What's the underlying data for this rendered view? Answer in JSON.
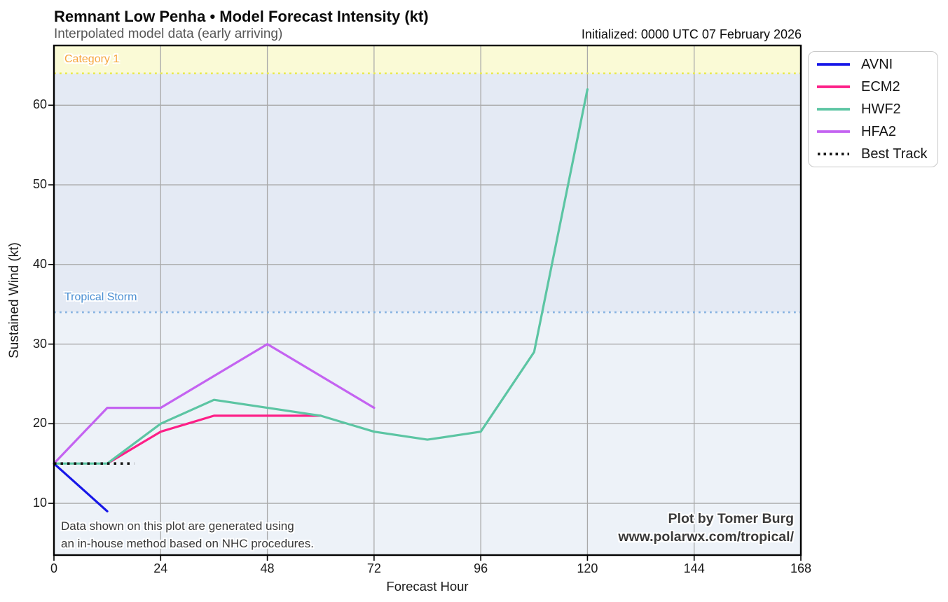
{
  "header": {
    "title": "Remnant Low Penha • Model Forecast Intensity (kt)",
    "subtitle": "Interpolated model data (early arriving)",
    "initialized": "Initialized: 0000 UTC 07 February 2026"
  },
  "chart_data": {
    "type": "line",
    "title": "Remnant Low Penha • Model Forecast Intensity (kt)",
    "xlabel": "Forecast Hour",
    "ylabel": "Sustained Wind (kt)",
    "xlim": [
      0,
      168
    ],
    "ylim": [
      3.5,
      67.5
    ],
    "x_ticks": [
      0,
      24,
      48,
      72,
      96,
      120,
      144,
      168
    ],
    "y_ticks": [
      10,
      20,
      30,
      40,
      50,
      60
    ],
    "grid": true,
    "legend_position": "outside-top-right",
    "bands": [
      {
        "name": "below-tropical-storm",
        "from": 3.5,
        "to": 34,
        "fill": "#edf2f8"
      },
      {
        "name": "tropical-storm-zone",
        "from": 34,
        "to": 64,
        "fill": "#e4eaf4"
      },
      {
        "name": "category-1-zone",
        "from": 64,
        "to": 67.5,
        "fill": "#fafad6"
      }
    ],
    "thresholds": [
      {
        "label": "Tropical Storm",
        "value": 34,
        "line_color": "#87b3e1",
        "label_color": "#4a8fd3"
      },
      {
        "label": "Category 1",
        "value": 64,
        "line_color": "#e9e94f",
        "label_color": "#f6a63e"
      }
    ],
    "series": [
      {
        "name": "AVNI",
        "color": "#1717e8",
        "style": "solid",
        "points": [
          [
            0,
            15
          ],
          [
            12,
            9
          ]
        ]
      },
      {
        "name": "ECM2",
        "color": "#fd1f87",
        "style": "solid",
        "points": [
          [
            12,
            15
          ],
          [
            24,
            19
          ],
          [
            36,
            21
          ],
          [
            48,
            21
          ],
          [
            60,
            21
          ]
        ]
      },
      {
        "name": "HWF2",
        "color": "#5cc5a3",
        "style": "solid",
        "points": [
          [
            0,
            15
          ],
          [
            12,
            15
          ],
          [
            24,
            20
          ],
          [
            36,
            23
          ],
          [
            48,
            22
          ],
          [
            60,
            21
          ],
          [
            72,
            19
          ],
          [
            84,
            18
          ],
          [
            96,
            19
          ],
          [
            108,
            29
          ],
          [
            120,
            62
          ]
        ]
      },
      {
        "name": "HFA2",
        "color": "#c463f1",
        "style": "solid",
        "points": [
          [
            0,
            15
          ],
          [
            12,
            22
          ],
          [
            24,
            22
          ],
          [
            48,
            30
          ],
          [
            72,
            22
          ]
        ]
      },
      {
        "name": "Best Track",
        "color": "#141414",
        "style": "dotted",
        "points": [
          [
            0,
            15
          ],
          [
            18,
            15
          ]
        ]
      }
    ]
  },
  "annotations": {
    "disclaimer_line1": "Data shown on this plot are generated using",
    "disclaimer_line2": "an in-house method based on NHC procedures.",
    "credit_line1": "Plot by Tomer Burg",
    "credit_line2": "www.polarwx.com/tropical/"
  },
  "colors": {
    "background": "#ffffff",
    "grid": "#a9a9a9",
    "spine": "#000000",
    "title": "#0b0b0b",
    "subtitle": "#575757",
    "tick_label": "#1c1c1c",
    "credit_text": "#3a3a3a"
  }
}
